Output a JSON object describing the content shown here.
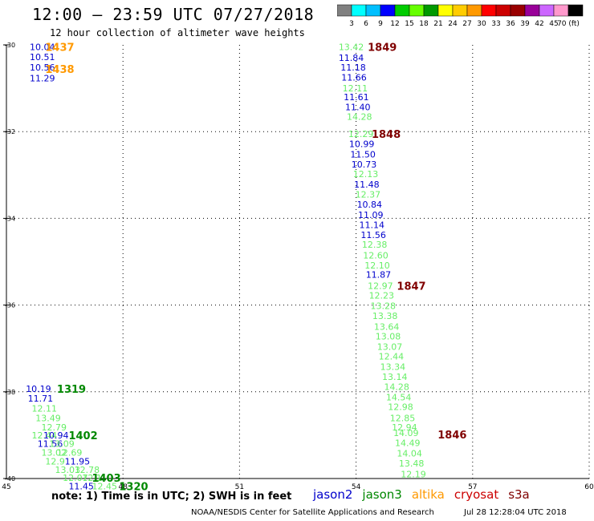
{
  "header": {
    "title": "12:00 – 23:59 UTC 07/27/2018",
    "subtitle": "12 hour collection of altimeter wave heights"
  },
  "colorbar": {
    "colors": [
      "#808080",
      "#00ffff",
      "#00bfff",
      "#0000ff",
      "#00cc00",
      "#66ff00",
      "#009900",
      "#ffff00",
      "#ffcc00",
      "#ff9900",
      "#ff0000",
      "#cc0000",
      "#990000",
      "#990099",
      "#cc66ff",
      "#ff99cc",
      "#000000"
    ],
    "labels": [
      "3",
      "6",
      "9",
      "12",
      "15",
      "18",
      "21",
      "24",
      "27",
      "30",
      "33",
      "36",
      "39",
      "42",
      "45",
      "70 (ft)"
    ]
  },
  "note": "note:  1) Time is in UTC;  2) SWH is in feet",
  "legend": [
    {
      "label": "jason2",
      "color": "#0000cc"
    },
    {
      "label": "jason3",
      "color": "#008800"
    },
    {
      "label": "altika",
      "color": "#ff9900"
    },
    {
      "label": "cryosat",
      "color": "#cc0000"
    },
    {
      "label": "s3a",
      "color": "#800000"
    }
  ],
  "footer": {
    "left": "NOAA/NESDIS Center for Satellite Applications and Research",
    "right": "Jul 28 12:28:04 UTC 2018"
  },
  "chart_data": {
    "type": "scatter",
    "xlim": [
      45,
      60
    ],
    "ylim": [
      -40,
      -30
    ],
    "xticks": [
      "45",
      "48",
      "51",
      "54",
      "57",
      "60"
    ],
    "yticks": [
      "-30",
      "-32",
      "-34",
      "-36",
      "-38",
      "-40"
    ],
    "grid": true,
    "points": [
      {
        "x": 45.6,
        "y": -30.05,
        "label": "10.04",
        "color": "#0000cc"
      },
      {
        "x": 45.6,
        "y": -30.28,
        "label": "10.51",
        "color": "#0000cc"
      },
      {
        "x": 45.6,
        "y": -30.52,
        "label": "10.56",
        "color": "#0000cc"
      },
      {
        "x": 45.6,
        "y": -30.77,
        "label": "11.29",
        "color": "#0000cc"
      },
      {
        "x": 53.55,
        "y": -30.05,
        "label": "13.42",
        "color": "#66ee66"
      },
      {
        "x": 53.55,
        "y": -30.3,
        "label": "11.84",
        "color": "#0000cc"
      },
      {
        "x": 53.6,
        "y": -30.52,
        "label": "11.18",
        "color": "#0000cc"
      },
      {
        "x": 53.62,
        "y": -30.75,
        "label": "11.66",
        "color": "#0000cc"
      },
      {
        "x": 53.65,
        "y": -31.0,
        "label": "12.11",
        "color": "#66ee66"
      },
      {
        "x": 53.68,
        "y": -31.2,
        "label": "11.61",
        "color": "#0000cc"
      },
      {
        "x": 53.72,
        "y": -31.43,
        "label": "11.40",
        "color": "#0000cc"
      },
      {
        "x": 53.76,
        "y": -31.65,
        "label": "14.28",
        "color": "#66ee66"
      },
      {
        "x": 53.8,
        "y": -32.05,
        "label": "12.29",
        "color": "#66ee66"
      },
      {
        "x": 53.82,
        "y": -32.28,
        "label": "10.99",
        "color": "#0000cc"
      },
      {
        "x": 53.85,
        "y": -32.52,
        "label": "11.50",
        "color": "#0000cc"
      },
      {
        "x": 53.88,
        "y": -32.75,
        "label": "10.73",
        "color": "#0000cc"
      },
      {
        "x": 53.92,
        "y": -32.98,
        "label": "12.13",
        "color": "#66ee66"
      },
      {
        "x": 53.95,
        "y": -33.22,
        "label": "11.48",
        "color": "#0000cc"
      },
      {
        "x": 53.98,
        "y": -33.45,
        "label": "12.37",
        "color": "#66ee66"
      },
      {
        "x": 54.02,
        "y": -33.68,
        "label": "10.84",
        "color": "#0000cc"
      },
      {
        "x": 54.05,
        "y": -33.92,
        "label": "11.09",
        "color": "#0000cc"
      },
      {
        "x": 54.08,
        "y": -34.15,
        "label": "11.14",
        "color": "#0000cc"
      },
      {
        "x": 54.12,
        "y": -34.38,
        "label": "11.56",
        "color": "#0000cc"
      },
      {
        "x": 54.15,
        "y": -34.6,
        "label": "12.38",
        "color": "#66ee66"
      },
      {
        "x": 54.18,
        "y": -34.85,
        "label": "12.60",
        "color": "#66ee66"
      },
      {
        "x": 54.22,
        "y": -35.08,
        "label": "12.10",
        "color": "#66ee66"
      },
      {
        "x": 54.25,
        "y": -35.3,
        "label": "11.87",
        "color": "#0000cc"
      },
      {
        "x": 54.3,
        "y": -35.55,
        "label": "12.97",
        "color": "#66ee66"
      },
      {
        "x": 54.33,
        "y": -35.78,
        "label": "12.23",
        "color": "#66ee66"
      },
      {
        "x": 54.37,
        "y": -36.02,
        "label": "13.28",
        "color": "#66ee66"
      },
      {
        "x": 54.42,
        "y": -36.25,
        "label": "13.38",
        "color": "#66ee66"
      },
      {
        "x": 54.46,
        "y": -36.5,
        "label": "13.64",
        "color": "#66ee66"
      },
      {
        "x": 54.5,
        "y": -36.72,
        "label": "13.08",
        "color": "#66ee66"
      },
      {
        "x": 54.54,
        "y": -36.96,
        "label": "13.07",
        "color": "#66ee66"
      },
      {
        "x": 54.58,
        "y": -37.18,
        "label": "12.44",
        "color": "#66ee66"
      },
      {
        "x": 54.62,
        "y": -37.42,
        "label": "13.34",
        "color": "#66ee66"
      },
      {
        "x": 54.67,
        "y": -37.65,
        "label": "13.14",
        "color": "#66ee66"
      },
      {
        "x": 54.72,
        "y": -37.88,
        "label": "14.28",
        "color": "#66ee66"
      },
      {
        "x": 54.77,
        "y": -38.12,
        "label": "14.54",
        "color": "#66ee66"
      },
      {
        "x": 54.82,
        "y": -38.35,
        "label": "12.98",
        "color": "#66ee66"
      },
      {
        "x": 54.87,
        "y": -38.6,
        "label": "12.85",
        "color": "#66ee66"
      },
      {
        "x": 54.92,
        "y": -38.82,
        "label": "12.94",
        "color": "#66ee66"
      },
      {
        "x": 54.96,
        "y": -38.95,
        "label": "14.09",
        "color": "#66ee66"
      },
      {
        "x": 55.0,
        "y": -39.18,
        "label": "14.49",
        "color": "#66ee66"
      },
      {
        "x": 55.05,
        "y": -39.42,
        "label": "14.04",
        "color": "#66ee66"
      },
      {
        "x": 55.1,
        "y": -39.65,
        "label": "13.48",
        "color": "#66ee66"
      },
      {
        "x": 55.15,
        "y": -39.9,
        "label": "12.19",
        "color": "#66ee66"
      },
      {
        "x": 45.5,
        "y": -37.93,
        "label": "10.19",
        "color": "#0000cc"
      },
      {
        "x": 45.55,
        "y": -38.15,
        "label": "11.71",
        "color": "#0000cc"
      },
      {
        "x": 45.65,
        "y": -38.38,
        "label": "12.11",
        "color": "#66ee66"
      },
      {
        "x": 45.75,
        "y": -38.6,
        "label": "13.49",
        "color": "#66ee66"
      },
      {
        "x": 45.9,
        "y": -38.82,
        "label": "12.79",
        "color": "#66ee66"
      },
      {
        "x": 45.65,
        "y": -39.0,
        "label": "12.44",
        "color": "#66ee66"
      },
      {
        "x": 45.95,
        "y": -39.0,
        "label": "10.94",
        "color": "#0000cc"
      },
      {
        "x": 45.8,
        "y": -39.2,
        "label": "11.56",
        "color": "#0000cc"
      },
      {
        "x": 46.1,
        "y": -39.2,
        "label": "13.09",
        "color": "#66ee66"
      },
      {
        "x": 45.9,
        "y": -39.4,
        "label": "13.02",
        "color": "#66ee66"
      },
      {
        "x": 46.3,
        "y": -39.4,
        "label": "12.69",
        "color": "#66ee66"
      },
      {
        "x": 46.0,
        "y": -39.6,
        "label": "12.9",
        "color": "#66ee66"
      },
      {
        "x": 46.5,
        "y": -39.6,
        "label": "11.95",
        "color": "#0000cc"
      },
      {
        "x": 46.25,
        "y": -39.8,
        "label": "13.03",
        "color": "#66ee66"
      },
      {
        "x": 46.75,
        "y": -39.8,
        "label": "12.78",
        "color": "#66ee66"
      },
      {
        "x": 46.45,
        "y": -39.98,
        "label": "12.07",
        "color": "#66ee66"
      },
      {
        "x": 46.95,
        "y": -39.98,
        "label": "12.1",
        "color": "#66ee66"
      },
      {
        "x": 46.6,
        "y": -40.18,
        "label": "11.45",
        "color": "#0000cc"
      },
      {
        "x": 47.2,
        "y": -40.18,
        "label": "12.45",
        "color": "#66ee66"
      }
    ],
    "time_labels": [
      {
        "x": 46.0,
        "y": -30.05,
        "label": "1437",
        "color": "#ff9900"
      },
      {
        "x": 46.0,
        "y": -30.55,
        "label": "1438",
        "color": "#ff9900"
      },
      {
        "x": 54.3,
        "y": -30.05,
        "label": "1849",
        "color": "#800000"
      },
      {
        "x": 54.4,
        "y": -32.05,
        "label": "1848",
        "color": "#800000"
      },
      {
        "x": 55.05,
        "y": -35.55,
        "label": "1847",
        "color": "#800000"
      },
      {
        "x": 56.1,
        "y": -38.98,
        "label": "1846",
        "color": "#800000"
      },
      {
        "x": 46.3,
        "y": -37.93,
        "label": "1319",
        "color": "#008800"
      },
      {
        "x": 46.6,
        "y": -39.0,
        "label": "1402",
        "color": "#008800"
      },
      {
        "x": 47.2,
        "y": -39.98,
        "label": "1403",
        "color": "#008800"
      },
      {
        "x": 47.9,
        "y": -40.18,
        "label": "1320",
        "color": "#008800"
      }
    ]
  }
}
